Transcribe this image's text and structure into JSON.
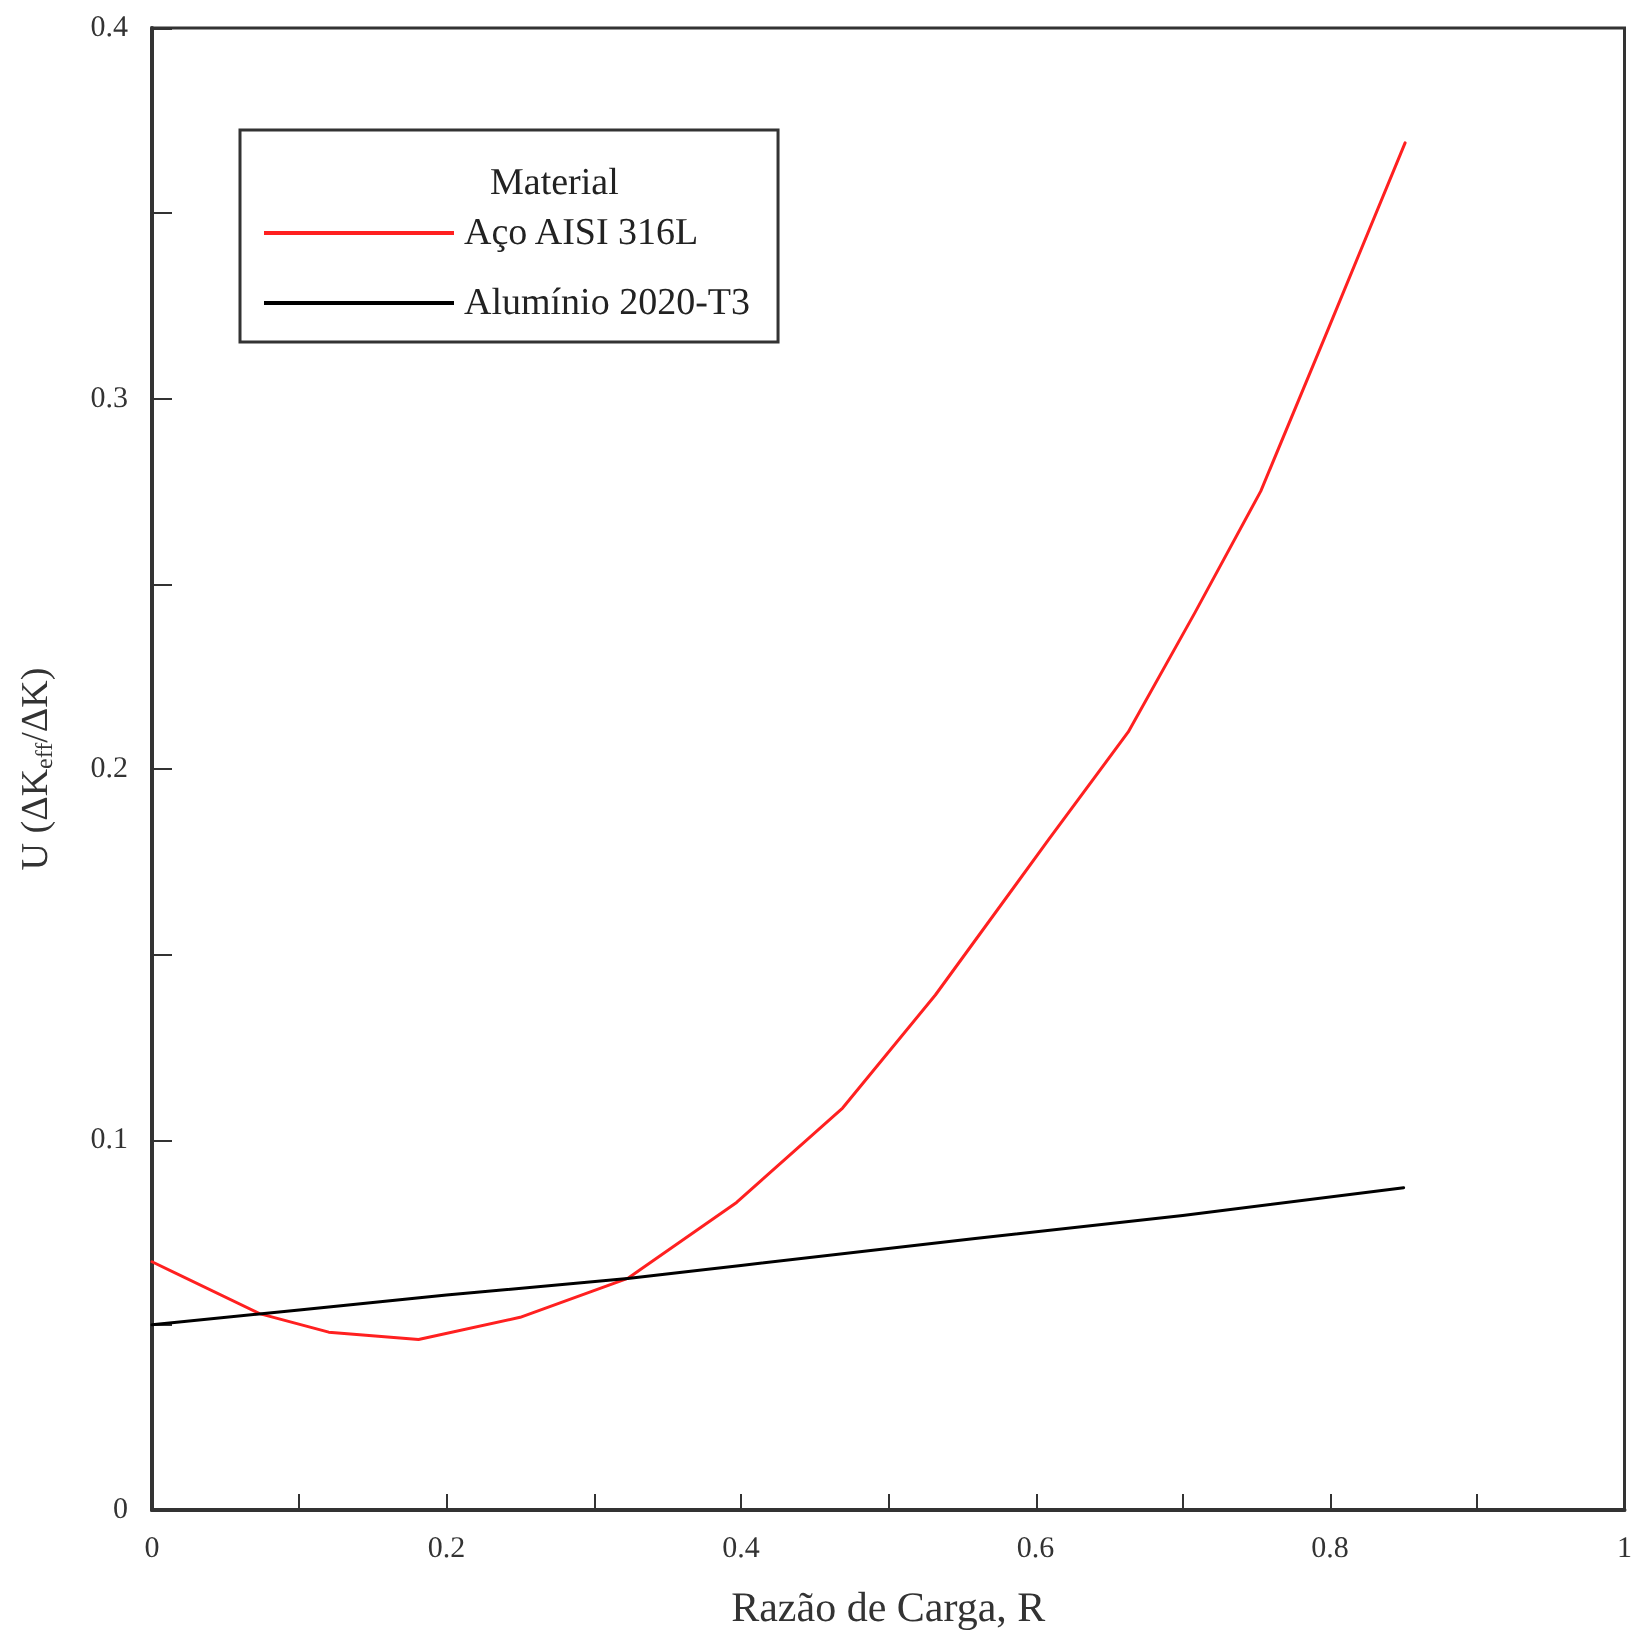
{
  "chart_data": {
    "type": "line",
    "xlabel": "Razão de Carga, R",
    "ylabel": "U (ΔK$_{eff}$/ΔK)",
    "legend_title": "Material",
    "xlim": [
      0,
      1
    ],
    "xticks": [
      0,
      {
        "value": 0.1,
        "label": null
      },
      0.2,
      {
        "value": 0.3,
        "label": null
      },
      0.4,
      {
        "value": 0.5,
        "label": null
      },
      0.6,
      {
        "value": 0.7,
        "label": null
      },
      0.8,
      {
        "value": 0.9,
        "label": null
      },
      1
    ],
    "ylim": [
      0,
      0.4
    ],
    "yticks": [
      0,
      {
        "value": 0.05,
        "label": null
      },
      0.1,
      {
        "value": 0.15,
        "label": null
      },
      0.2,
      {
        "value": 0.25,
        "label": null
      },
      0.3,
      {
        "value": 0.35,
        "label": null
      },
      0.4
    ],
    "series": [
      {
        "name": "Aço AISI 316L",
        "color": "#ff2020",
        "x": [
          0,
          0.073,
          0.12,
          0.181,
          0.25,
          0.323,
          0.397,
          0.469,
          0.532,
          0.609,
          0.663,
          0.708,
          0.753,
          0.798,
          0.851
        ],
        "values": [
          0.067,
          0.053,
          0.048,
          0.046,
          0.052,
          0.0625,
          0.083,
          0.1085,
          0.139,
          0.181,
          0.21,
          0.242,
          0.275,
          0.318,
          0.369
        ]
      },
      {
        "name": "Alumínio 2020-T3",
        "color": "#000000",
        "x": [
          0,
          0.1,
          0.2,
          0.323,
          0.4,
          0.559,
          0.7,
          0.85
        ],
        "values": [
          0.05,
          0.054,
          0.058,
          0.0625,
          0.066,
          0.0733,
          0.0795,
          0.087
        ]
      }
    ],
    "legend": "top left",
    "grid": false,
    "marker": "none",
    "line_style": "solid"
  }
}
